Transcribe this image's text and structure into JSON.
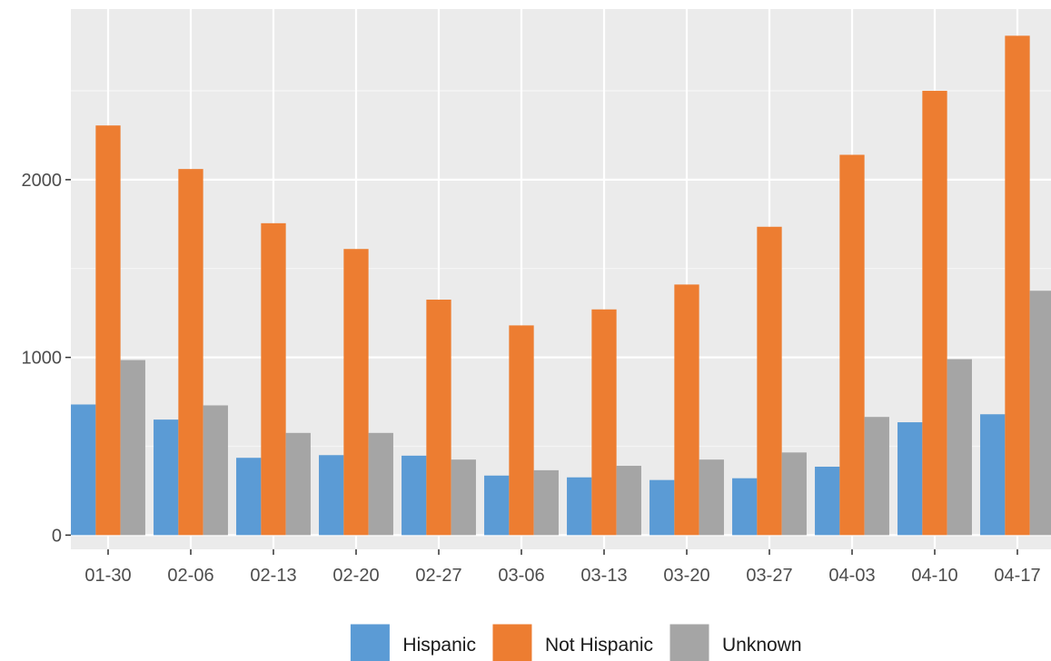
{
  "chart_data": {
    "type": "bar",
    "title": "",
    "xlabel": "",
    "ylabel": "",
    "categories": [
      "01-30",
      "02-06",
      "02-13",
      "02-20",
      "02-27",
      "03-06",
      "03-13",
      "03-20",
      "03-27",
      "04-03",
      "04-10",
      "04-17"
    ],
    "series": [
      {
        "name": "Hispanic",
        "color": "#5b9bd5",
        "values": [
          735,
          650,
          435,
          450,
          447,
          335,
          325,
          310,
          320,
          385,
          635,
          680
        ]
      },
      {
        "name": "Not Hispanic",
        "color": "#ed7d31",
        "values": [
          2305,
          2060,
          1755,
          1610,
          1325,
          1180,
          1270,
          1410,
          1735,
          2140,
          2500,
          2810
        ]
      },
      {
        "name": "Unknown",
        "color": "#a5a5a5",
        "values": [
          985,
          730,
          575,
          575,
          425,
          365,
          390,
          425,
          465,
          665,
          990,
          1375
        ]
      }
    ],
    "ylim": [
      -80,
      2960
    ],
    "yticks": [
      0,
      1000,
      2000
    ],
    "grid": true,
    "legend_position": "bottom"
  }
}
